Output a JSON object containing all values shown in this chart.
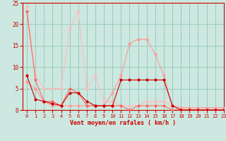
{
  "x": [
    0,
    1,
    2,
    3,
    4,
    5,
    6,
    7,
    8,
    9,
    10,
    11,
    12,
    13,
    14,
    15,
    16,
    17,
    18,
    19,
    20,
    21,
    22,
    23
  ],
  "line_lightest": [
    24,
    8,
    5,
    5,
    5,
    19,
    23,
    5,
    8,
    2,
    2,
    1,
    1,
    1,
    2,
    2,
    2,
    1,
    0.5,
    0.5,
    0.5,
    0.5,
    0.5,
    0.5
  ],
  "line_light": [
    6.5,
    5,
    2,
    1,
    1,
    1,
    1,
    1,
    1,
    1,
    4,
    8,
    15.5,
    16.5,
    16.5,
    13,
    8,
    1,
    0.5,
    0.5,
    0.5,
    0.5,
    0.5,
    0.5
  ],
  "line_mid": [
    23,
    7,
    2,
    2,
    1,
    5,
    4,
    1,
    1,
    1,
    1,
    1,
    0,
    1,
    1,
    1,
    1,
    0,
    0,
    0,
    0,
    0,
    0,
    0
  ],
  "line_dark": [
    8,
    2.5,
    2,
    1.5,
    1,
    4,
    4,
    2,
    1,
    1,
    1,
    7,
    7,
    7,
    7,
    7,
    7,
    1,
    0,
    0,
    0,
    0,
    0,
    0
  ],
  "color_lightest": "#ffbbbb",
  "color_light": "#ff9999",
  "color_mid": "#ff6666",
  "color_dark": "#cc0000",
  "bg_color": "#cce8e0",
  "grid_color": "#99ccbb",
  "xlabel": "Vent moyen/en rafales ( km/h )",
  "ylim": [
    0,
    25
  ],
  "xlim": [
    -0.5,
    23
  ],
  "yticks": [
    0,
    5,
    10,
    15,
    20,
    25
  ],
  "xticks": [
    0,
    1,
    2,
    3,
    4,
    5,
    6,
    7,
    8,
    9,
    10,
    11,
    12,
    13,
    14,
    15,
    16,
    17,
    18,
    19,
    20,
    21,
    22,
    23
  ]
}
